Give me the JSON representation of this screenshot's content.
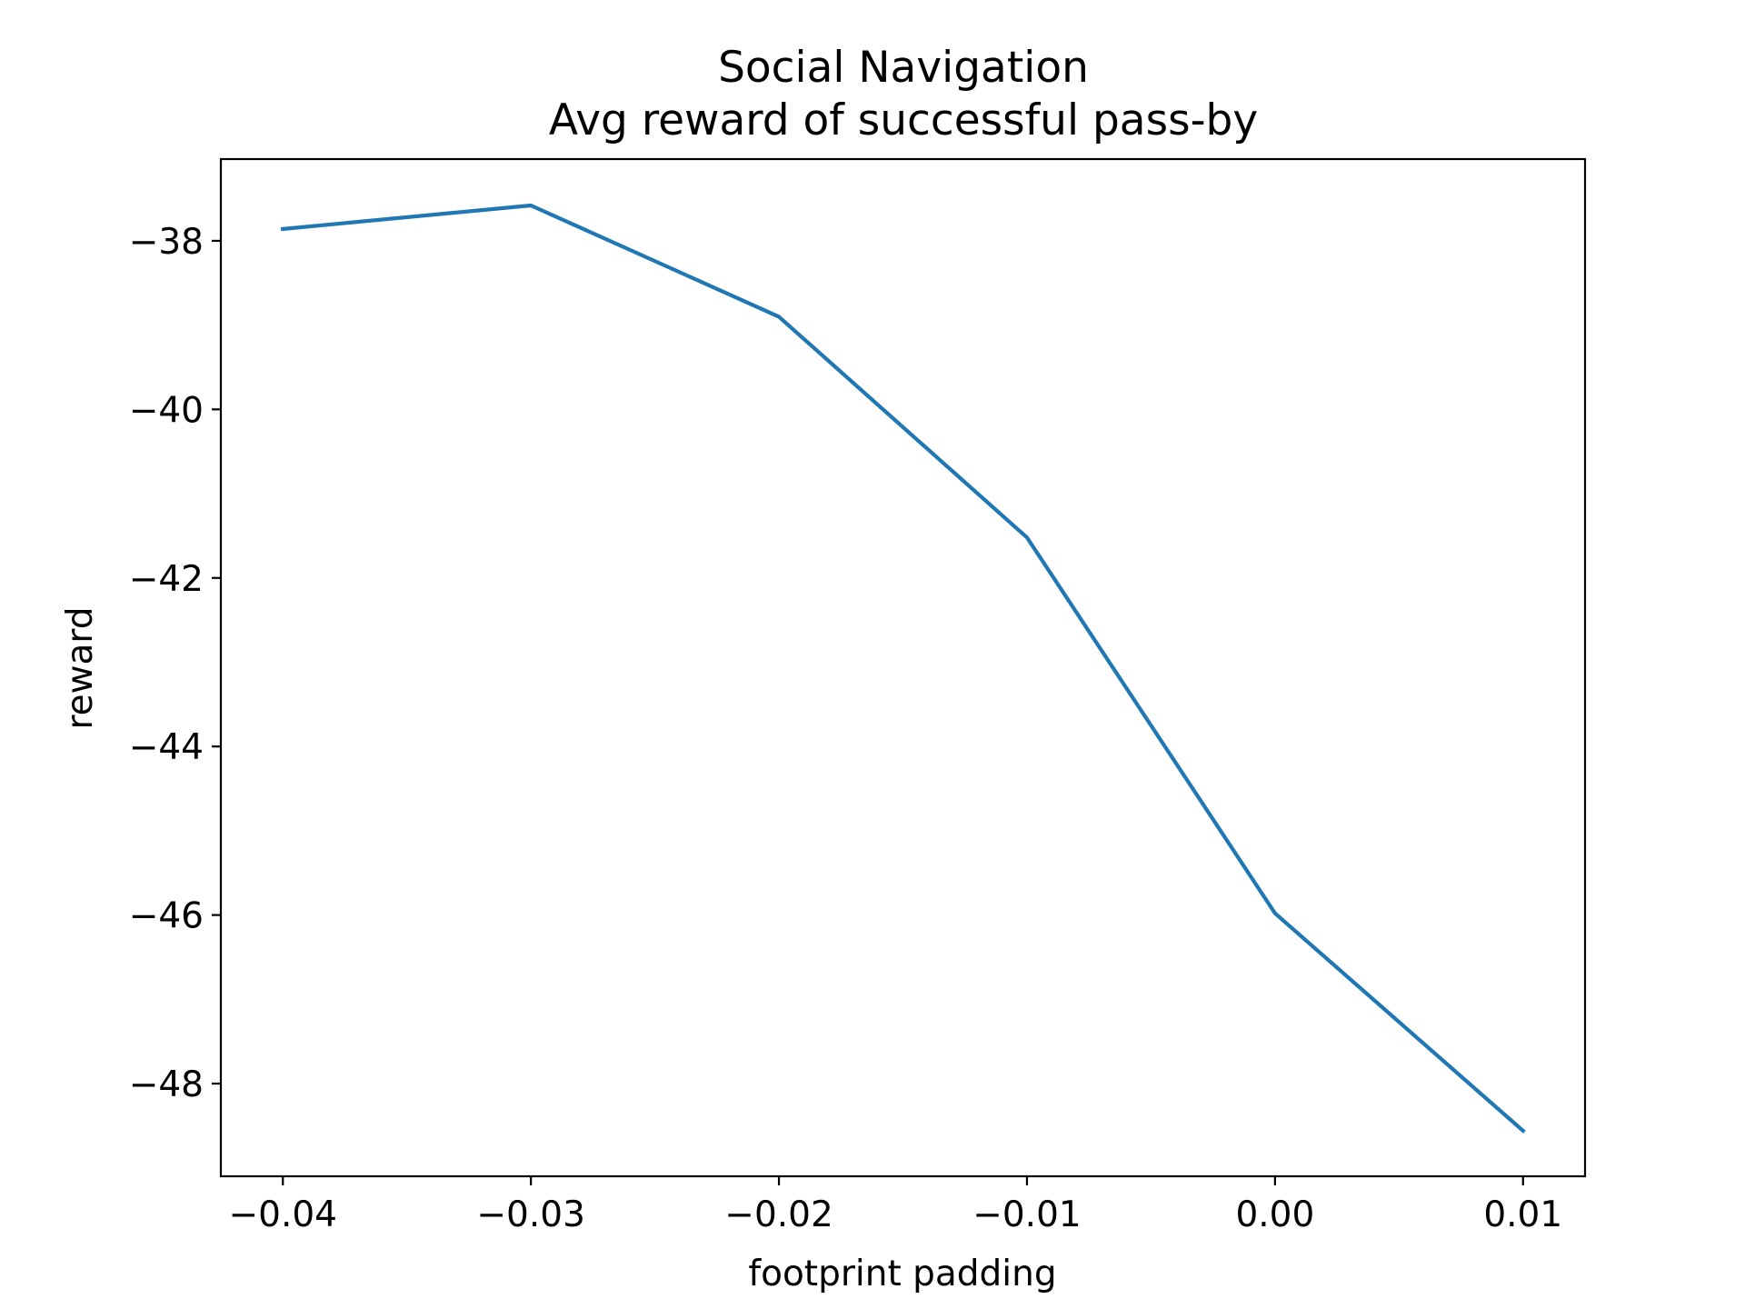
{
  "chart_data": {
    "type": "line",
    "title": "Social Navigation",
    "subtitle": "Avg reward of successful pass-by",
    "xlabel": "footprint padding",
    "ylabel": "reward",
    "x_ticks": [
      {
        "value": -0.04,
        "label": "−0.04"
      },
      {
        "value": -0.03,
        "label": "−0.03"
      },
      {
        "value": -0.02,
        "label": "−0.02"
      },
      {
        "value": -0.01,
        "label": "−0.01"
      },
      {
        "value": 0.0,
        "label": "0.00"
      },
      {
        "value": 0.01,
        "label": "0.01"
      }
    ],
    "y_ticks": [
      {
        "value": -38,
        "label": "−38"
      },
      {
        "value": -40,
        "label": "−40"
      },
      {
        "value": -42,
        "label": "−42"
      },
      {
        "value": -44,
        "label": "−44"
      },
      {
        "value": -46,
        "label": "−46"
      },
      {
        "value": -48,
        "label": "−48"
      }
    ],
    "xlim": [
      -0.0425,
      0.0125
    ],
    "ylim": [
      -49.1,
      -37.03
    ],
    "grid": false,
    "series": [
      {
        "color": "#1f77b4",
        "x": [
          -0.04,
          -0.03,
          -0.02,
          -0.01,
          0.0,
          0.01
        ],
        "y": [
          -37.86,
          -37.58,
          -38.9,
          -41.52,
          -45.98,
          -48.56
        ]
      }
    ]
  }
}
